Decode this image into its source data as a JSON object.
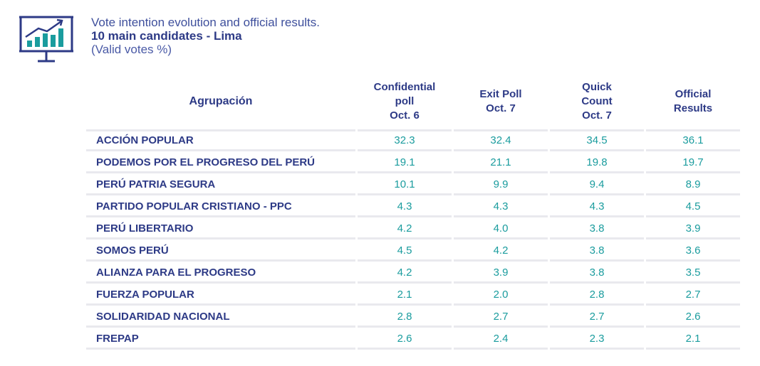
{
  "header": {
    "line1": "Vote intention evolution and official results.",
    "line2": "10 main candidates - Lima",
    "line3": "(Valid votes %)",
    "icon": "chart-presentation-icon"
  },
  "colors": {
    "navy": "#2d3a86",
    "teal": "#1a9c9e",
    "grid": "#e9e9ee"
  },
  "chart_data": {
    "type": "table",
    "columns": [
      {
        "lines": [
          "Agrupación"
        ]
      },
      {
        "lines": [
          "Confidential",
          "poll",
          "Oct. 6"
        ]
      },
      {
        "lines": [
          "Exit Poll",
          "Oct. 7"
        ]
      },
      {
        "lines": [
          "Quick",
          "Count",
          "Oct. 7"
        ]
      },
      {
        "lines": [
          "Official",
          "Results"
        ]
      }
    ],
    "rows": [
      {
        "party": "ACCIÓN POPULAR",
        "values": [
          "32.3",
          "32.4",
          "34.5",
          "36.1"
        ]
      },
      {
        "party": "PODEMOS POR EL PROGRESO DEL PERÚ",
        "values": [
          "19.1",
          "21.1",
          "19.8",
          "19.7"
        ]
      },
      {
        "party": "PERÚ PATRIA SEGURA",
        "values": [
          "10.1",
          "9.9",
          "9.4",
          "8.9"
        ]
      },
      {
        "party": "PARTIDO POPULAR CRISTIANO - PPC",
        "values": [
          "4.3",
          "4.3",
          "4.3",
          "4.5"
        ]
      },
      {
        "party": "PERÚ LIBERTARIO",
        "values": [
          "4.2",
          "4.0",
          "3.8",
          "3.9"
        ]
      },
      {
        "party": "SOMOS PERÚ",
        "values": [
          "4.5",
          "4.2",
          "3.8",
          "3.6"
        ]
      },
      {
        "party": "ALIANZA PARA EL PROGRESO",
        "values": [
          "4.2",
          "3.9",
          "3.8",
          "3.5"
        ]
      },
      {
        "party": "FUERZA POPULAR",
        "values": [
          "2.1",
          "2.0",
          "2.8",
          "2.7"
        ]
      },
      {
        "party": "SOLIDARIDAD NACIONAL",
        "values": [
          "2.8",
          "2.7",
          "2.7",
          "2.6"
        ]
      },
      {
        "party": "FREPAP",
        "values": [
          "2.6",
          "2.4",
          "2.3",
          "2.1"
        ]
      }
    ]
  }
}
